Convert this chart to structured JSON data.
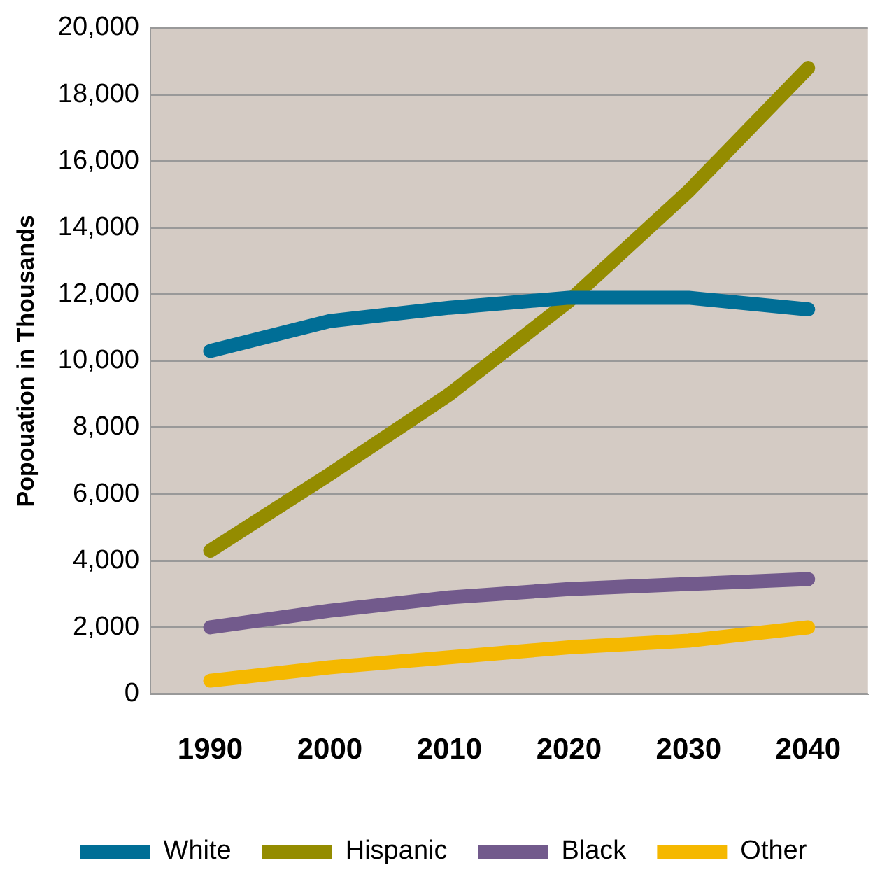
{
  "chart_data": {
    "type": "line",
    "ylabel": "Popouation in Thousands",
    "categories": [
      "1990",
      "2000",
      "2010",
      "2020",
      "2030",
      "2040"
    ],
    "series": [
      {
        "name": "White",
        "color": "#006e96",
        "values": [
          10300,
          11200,
          11600,
          11900,
          11900,
          11550
        ]
      },
      {
        "name": "Hispanic",
        "color": "#948c00",
        "values": [
          4300,
          6600,
          9000,
          11800,
          15100,
          18800
        ]
      },
      {
        "name": "Black",
        "color": "#725a8c",
        "values": [
          2000,
          2500,
          2900,
          3150,
          3300,
          3450
        ]
      },
      {
        "name": "Other",
        "color": "#f5b800",
        "values": [
          400,
          800,
          1100,
          1400,
          1600,
          2000
        ]
      }
    ],
    "ylim": [
      0,
      20000
    ],
    "yticks": [
      {
        "value": 0,
        "label": "0"
      },
      {
        "value": 2000,
        "label": "2,000"
      },
      {
        "value": 4000,
        "label": "4,000"
      },
      {
        "value": 6000,
        "label": "6,000"
      },
      {
        "value": 8000,
        "label": "8,000"
      },
      {
        "value": 10000,
        "label": "10,000"
      },
      {
        "value": 12000,
        "label": "12,000"
      },
      {
        "value": 14000,
        "label": "14,000"
      },
      {
        "value": 16000,
        "label": "16,000"
      },
      {
        "value": 18000,
        "label": "18,000"
      },
      {
        "value": 20000,
        "label": "20,000"
      }
    ],
    "grid": "y",
    "legend": "bottom",
    "marker": "none",
    "line_style": "solid"
  }
}
